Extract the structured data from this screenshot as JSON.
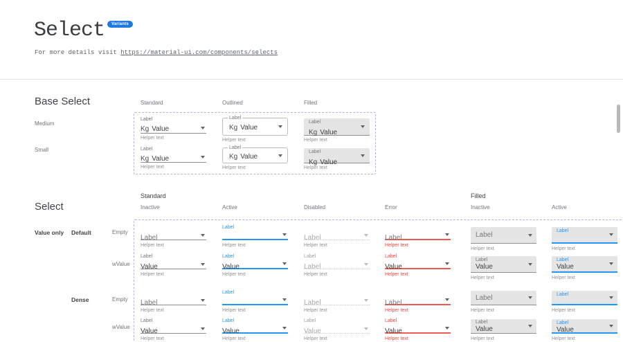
{
  "page": {
    "title": "Select",
    "badge": "Variants",
    "subtitle_prefix": "For more details visit ",
    "subtitle_link": "https://material-ui.com/components/selects"
  },
  "colors": {
    "primary": "#2196f3",
    "error": "#f44336",
    "badge": "#1e7ae0",
    "filled_bg": "#e5e5e5",
    "dashed_border": "#b0b8e4"
  },
  "base_select": {
    "heading": "Base Select",
    "column_headers": [
      "Standard",
      "Outlined",
      "Filled"
    ],
    "row_headers": [
      "Medium",
      "Small"
    ],
    "select": {
      "label": "Label",
      "adornment": "Kg",
      "value": "Value",
      "helper": "Helper text"
    }
  },
  "select_section": {
    "heading": "Select",
    "groups": [
      {
        "label": "Standard",
        "columns": [
          "Inactive",
          "Active",
          "Disabled",
          "Error"
        ]
      },
      {
        "label": "Filled",
        "columns": [
          "Inactive",
          "Active"
        ]
      }
    ],
    "row_headers": [
      {
        "group": "Value only",
        "size": "Default",
        "state": "Empty"
      },
      {
        "group": "",
        "size": "",
        "state": "wValue"
      },
      {
        "group": "",
        "size": "Dense",
        "state": "Empty"
      },
      {
        "group": "",
        "size": "",
        "state": "wValue"
      }
    ],
    "grid_rows": [
      {
        "cells": [
          {
            "caption": "",
            "value": "Label",
            "helper": "Helper text"
          },
          {
            "caption": "Label",
            "value": "",
            "helper": "Helper text"
          },
          {
            "caption": "",
            "value": "Label",
            "helper": "Helper text"
          },
          {
            "caption": "",
            "value": "Label",
            "helper": "Helper text"
          },
          {
            "caption": "",
            "value": "Label",
            "helper": "Helper text"
          },
          {
            "caption": "Label",
            "value": "",
            "helper": "Helper text"
          }
        ]
      },
      {
        "cells": [
          {
            "caption": "Label",
            "value": "Value",
            "helper": "Helper text"
          },
          {
            "caption": "Label",
            "value": "Value",
            "helper": "Helper text"
          },
          {
            "caption": "Label",
            "value": "Label",
            "helper": "Helper text"
          },
          {
            "caption": "Label",
            "value": "Value",
            "helper": "Helper text"
          },
          {
            "caption": "Label",
            "value": "Value",
            "helper": "Helper text"
          },
          {
            "caption": "Label",
            "value": "Value",
            "helper": "Helper text"
          }
        ]
      },
      {
        "cells": [
          {
            "caption": "",
            "value": "Label",
            "helper": "Helper text"
          },
          {
            "caption": "Label",
            "value": "",
            "helper": "Helper text"
          },
          {
            "caption": "",
            "value": "Label",
            "helper": "Helper text"
          },
          {
            "caption": "",
            "value": "Label",
            "helper": "Helper text"
          },
          {
            "caption": "",
            "value": "Label",
            "helper": "Helper text"
          },
          {
            "caption": "Label",
            "value": "",
            "helper": "Helper text"
          }
        ]
      },
      {
        "cells": [
          {
            "caption": "Label",
            "value": "Value",
            "helper": "Helper text"
          },
          {
            "caption": "Label",
            "value": "Value",
            "helper": "Helper text"
          },
          {
            "caption": "Label",
            "value": "Value",
            "helper": "Helper text"
          },
          {
            "caption": "Label",
            "value": "Value",
            "helper": "Helper text"
          },
          {
            "caption": "Label",
            "value": "Value",
            "helper": "Helper text"
          },
          {
            "caption": "Label",
            "value": "Value",
            "helper": "Helper text"
          }
        ]
      }
    ]
  }
}
